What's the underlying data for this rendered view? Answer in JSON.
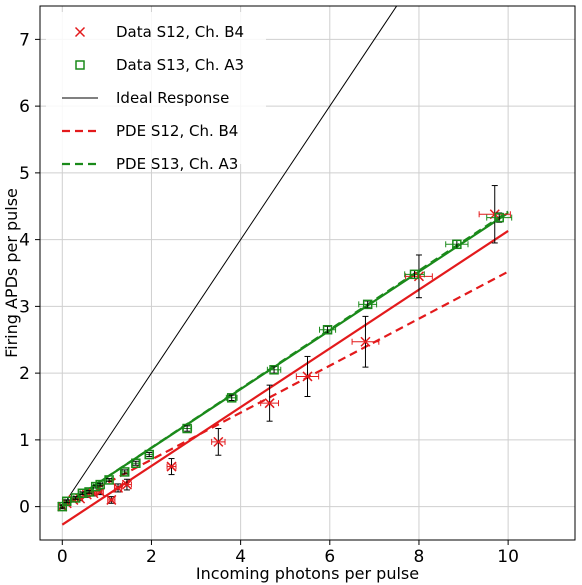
{
  "chart_data": {
    "type": "scatter",
    "xlabel": "Incoming photons per pulse",
    "ylabel": "Firing APDs per pulse",
    "xlim": [
      -0.5,
      11.5
    ],
    "ylim": [
      -0.5,
      7.5
    ],
    "xticks": [
      0,
      2,
      4,
      6,
      8,
      10
    ],
    "yticks": [
      0,
      1,
      2,
      3,
      4,
      5,
      6,
      7
    ],
    "grid": true,
    "legend_position": "top-left",
    "series": [
      {
        "name": "Data S12, Ch. B4",
        "kind": "markers",
        "marker": "x",
        "color": "#e31a1c",
        "points": [
          {
            "x": 0.0,
            "y": 0.0,
            "xerr": 0.05,
            "yerr": 0.03
          },
          {
            "x": 0.1,
            "y": 0.05,
            "xerr": 0.05,
            "yerr": 0.03
          },
          {
            "x": 0.25,
            "y": 0.1,
            "xerr": 0.05,
            "yerr": 0.03
          },
          {
            "x": 0.4,
            "y": 0.12,
            "xerr": 0.05,
            "yerr": 0.03
          },
          {
            "x": 0.55,
            "y": 0.18,
            "xerr": 0.06,
            "yerr": 0.04
          },
          {
            "x": 0.7,
            "y": 0.2,
            "xerr": 0.06,
            "yerr": 0.04
          },
          {
            "x": 0.85,
            "y": 0.22,
            "xerr": 0.07,
            "yerr": 0.04
          },
          {
            "x": 1.1,
            "y": 0.1,
            "xerr": 0.08,
            "yerr": 0.05
          },
          {
            "x": 1.25,
            "y": 0.28,
            "xerr": 0.08,
            "yerr": 0.06
          },
          {
            "x": 1.45,
            "y": 0.33,
            "xerr": 0.1,
            "yerr": 0.08
          },
          {
            "x": 2.45,
            "y": 0.6,
            "xerr": 0.1,
            "yerr": 0.12
          },
          {
            "x": 3.5,
            "y": 0.97,
            "xerr": 0.15,
            "yerr": 0.2
          },
          {
            "x": 4.65,
            "y": 1.55,
            "xerr": 0.2,
            "yerr": 0.27
          },
          {
            "x": 5.5,
            "y": 1.95,
            "xerr": 0.25,
            "yerr": 0.3
          },
          {
            "x": 6.8,
            "y": 2.47,
            "xerr": 0.3,
            "yerr": 0.38
          },
          {
            "x": 8.0,
            "y": 3.45,
            "xerr": 0.3,
            "yerr": 0.32
          },
          {
            "x": 9.7,
            "y": 4.38,
            "xerr": 0.35,
            "yerr": 0.43
          }
        ]
      },
      {
        "name": "Data S13, Ch. A3",
        "kind": "markers",
        "marker": "square",
        "color": "#1a8a1a",
        "points": [
          {
            "x": 0.0,
            "y": 0.0,
            "xerr": 0.04,
            "yerr": 0.02
          },
          {
            "x": 0.1,
            "y": 0.08,
            "xerr": 0.04,
            "yerr": 0.02
          },
          {
            "x": 0.3,
            "y": 0.13,
            "xerr": 0.04,
            "yerr": 0.02
          },
          {
            "x": 0.45,
            "y": 0.2,
            "xerr": 0.05,
            "yerr": 0.02
          },
          {
            "x": 0.6,
            "y": 0.22,
            "xerr": 0.05,
            "yerr": 0.02
          },
          {
            "x": 0.75,
            "y": 0.3,
            "xerr": 0.05,
            "yerr": 0.02
          },
          {
            "x": 0.85,
            "y": 0.33,
            "xerr": 0.05,
            "yerr": 0.02
          },
          {
            "x": 1.05,
            "y": 0.4,
            "xerr": 0.06,
            "yerr": 0.02
          },
          {
            "x": 1.4,
            "y": 0.52,
            "xerr": 0.06,
            "yerr": 0.03
          },
          {
            "x": 1.65,
            "y": 0.65,
            "xerr": 0.07,
            "yerr": 0.03
          },
          {
            "x": 1.95,
            "y": 0.78,
            "xerr": 0.08,
            "yerr": 0.03
          },
          {
            "x": 2.8,
            "y": 1.17,
            "xerr": 0.1,
            "yerr": 0.04
          },
          {
            "x": 3.8,
            "y": 1.63,
            "xerr": 0.12,
            "yerr": 0.04
          },
          {
            "x": 4.75,
            "y": 2.05,
            "xerr": 0.15,
            "yerr": 0.05
          },
          {
            "x": 5.95,
            "y": 2.65,
            "xerr": 0.18,
            "yerr": 0.05
          },
          {
            "x": 6.85,
            "y": 3.03,
            "xerr": 0.2,
            "yerr": 0.05
          },
          {
            "x": 7.9,
            "y": 3.48,
            "xerr": 0.22,
            "yerr": 0.06
          },
          {
            "x": 8.85,
            "y": 3.93,
            "xerr": 0.25,
            "yerr": 0.06
          },
          {
            "x": 9.8,
            "y": 4.33,
            "xerr": 0.28,
            "yerr": 0.07
          }
        ]
      },
      {
        "name": "Ideal Response",
        "kind": "line",
        "style": "solid",
        "color": "#000000",
        "x": [
          0,
          7.6
        ],
        "y": [
          0,
          7.6
        ]
      },
      {
        "name": "PDE S12, Ch. B4",
        "kind": "line",
        "style": "dashed",
        "color": "#e31a1c",
        "x": [
          0,
          10
        ],
        "y": [
          0,
          3.52
        ]
      },
      {
        "name": "PDE S13, Ch. A3",
        "kind": "line",
        "style": "dashed",
        "color": "#1a8a1a",
        "x": [
          0,
          10
        ],
        "y": [
          0,
          4.42
        ]
      }
    ],
    "fit_lines": [
      {
        "color": "#e31a1c",
        "style": "solid",
        "x": [
          0,
          10
        ],
        "y": [
          -0.27,
          4.13
        ]
      },
      {
        "color": "#1a8a1a",
        "style": "solid",
        "x": [
          0,
          10
        ],
        "y": [
          0.0,
          4.4
        ]
      }
    ]
  }
}
